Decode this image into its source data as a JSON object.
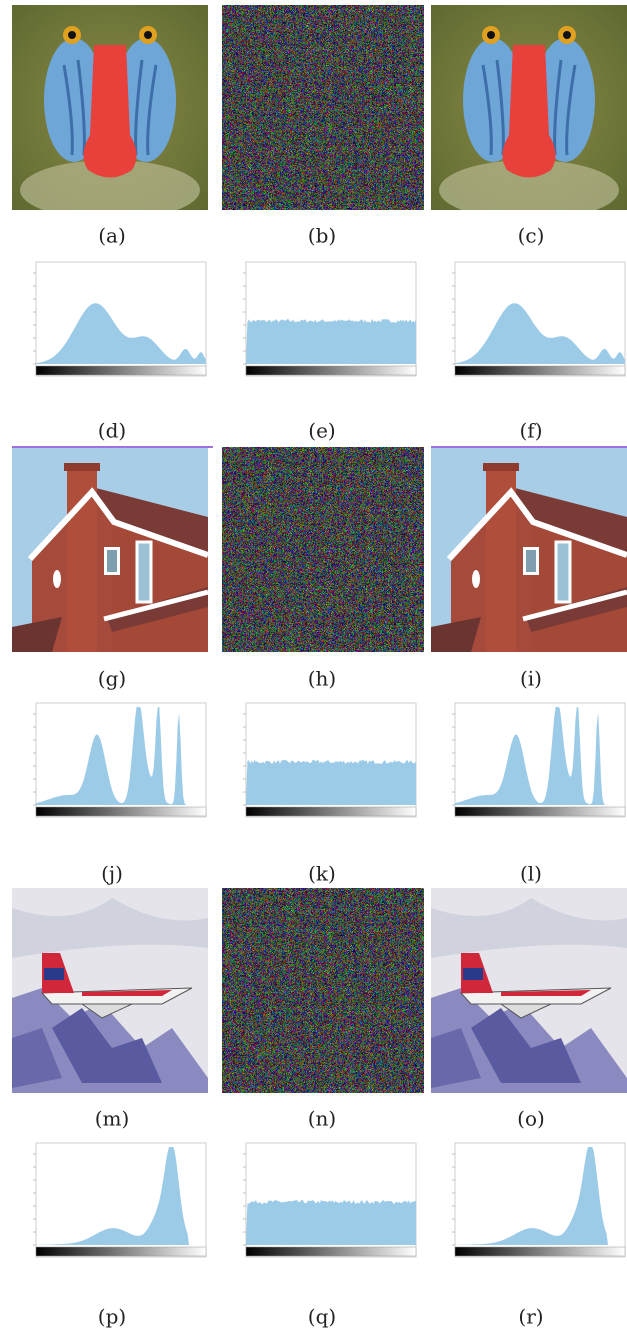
{
  "panels": {
    "labels": [
      "(a)",
      "(b)",
      "(c)",
      "(d)",
      "(e)",
      "(f)",
      "(g)",
      "(h)",
      "(i)",
      "(j)",
      "(k)",
      "(l)",
      "(m)",
      "(n)",
      "(o)",
      "(p)",
      "(q)",
      "(r)"
    ]
  }
}
